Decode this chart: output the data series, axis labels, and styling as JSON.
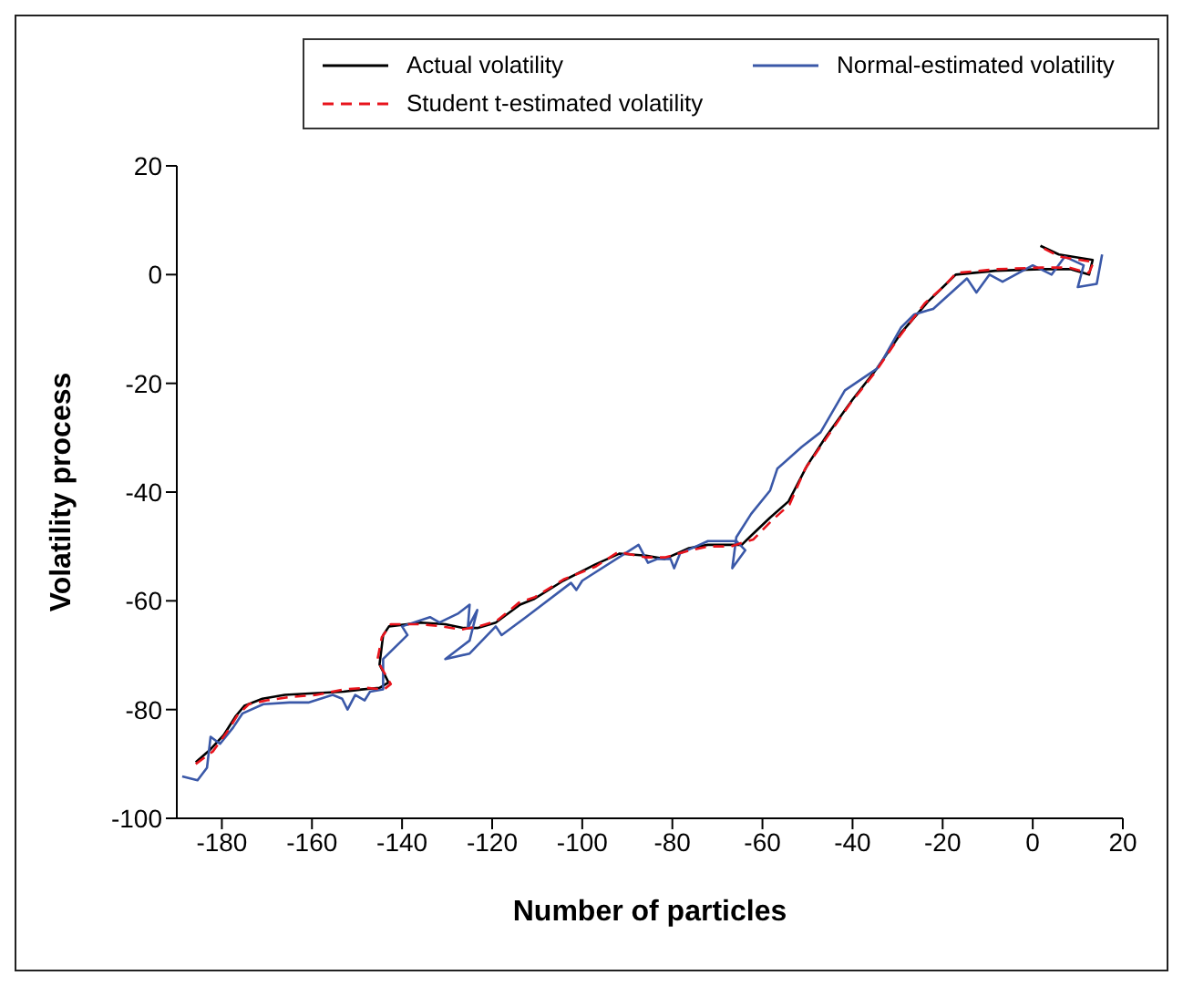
{
  "chart_data": {
    "type": "line",
    "xlabel": "Number of particles",
    "ylabel": "Volatility process",
    "xlim": [
      -190,
      20
    ],
    "xticks": [
      -180,
      -160,
      -140,
      -120,
      -100,
      -80,
      -60,
      -40,
      -20,
      0,
      20
    ],
    "ylim": [
      -100,
      20
    ],
    "yticks": [
      -100,
      -80,
      -60,
      -40,
      -20,
      0,
      20
    ],
    "grid": false,
    "legend": "top right",
    "marker": "none",
    "series": [
      {
        "name": "Actual volatility",
        "color": "#000000",
        "line_style": "solid",
        "x": [
          -185.8,
          -182.5,
          -179.6,
          -177,
          -175,
          -171,
          -166,
          -159.6,
          -153,
          -149,
          -145,
          -143,
          -145,
          -144.2,
          -142.9,
          -135.8,
          -130.4,
          -126.3,
          -123.3,
          -119.2,
          -113.8,
          -110.8,
          -104.2,
          -97.1,
          -91.7,
          -85.8,
          -81.7,
          -76.3,
          -72.1,
          -66.7,
          -64.6,
          -62.5,
          -58.3,
          -54.2,
          -50,
          -45.8,
          -40,
          -34.6,
          -29.2,
          -23.3,
          -19.2,
          -17.1,
          -8.3,
          1.7,
          8.3,
          12.5,
          13.3,
          5.8,
          1.7
        ],
        "values": [
          -89.7,
          -87.3,
          -84.7,
          -81.3,
          -79.3,
          -78,
          -77.3,
          -77,
          -76.7,
          -76.3,
          -76,
          -75,
          -71.7,
          -66.3,
          -64.7,
          -64,
          -64.3,
          -65,
          -65,
          -64,
          -60.7,
          -59.7,
          -56.3,
          -53.3,
          -51.3,
          -51.7,
          -52.3,
          -50.3,
          -49.7,
          -49.7,
          -49.7,
          -48,
          -44.7,
          -41.7,
          -35,
          -29.7,
          -23,
          -17.3,
          -10.7,
          -5,
          -1.7,
          0,
          0.7,
          1,
          1,
          0,
          2.7,
          3.7,
          5.3
        ]
      },
      {
        "name": "Normal-estimated volatility",
        "color": "#3a58a8",
        "line_style": "solid",
        "x": [
          -188.8,
          -185.4,
          -183.3,
          -182.5,
          -180.4,
          -177.5,
          -175.4,
          -170.8,
          -165,
          -160.8,
          -155.4,
          -153.3,
          -152.1,
          -150.4,
          -148.3,
          -147.1,
          -144.2,
          -144.2,
          -138.8,
          -140,
          -133.8,
          -131.7,
          -127.5,
          -125,
          -125.4,
          -123.3,
          -125,
          -130.4,
          -125,
          -119.2,
          -117.9,
          -112.5,
          -102.5,
          -101.3,
          -100,
          -87.5,
          -85.4,
          -83.3,
          -80.4,
          -79.6,
          -78.3,
          -72.1,
          -65.8,
          -63.8,
          -66.7,
          -65.8,
          -62.5,
          -58.3,
          -56.7,
          -51.3,
          -47.1,
          -41.7,
          -34.6,
          -33.3,
          -29.2,
          -26.3,
          -22.1,
          -14.6,
          -12.5,
          -9.6,
          -6.7,
          0,
          4.2,
          7.1,
          11.3,
          10,
          14.2,
          15.4
        ],
        "values": [
          -92.3,
          -93,
          -90.7,
          -85,
          -86.3,
          -83.3,
          -80.7,
          -79,
          -78.7,
          -78.7,
          -77.3,
          -78,
          -80,
          -77.3,
          -78.3,
          -76.7,
          -76.3,
          -70.7,
          -66.3,
          -64.7,
          -63,
          -64,
          -62.3,
          -60.7,
          -65,
          -61.7,
          -67.3,
          -70.7,
          -69.7,
          -64.7,
          -66.3,
          -63,
          -56.7,
          -58,
          -56.3,
          -49.7,
          -53,
          -52.3,
          -52.3,
          -54,
          -51.3,
          -49,
          -49,
          -50.7,
          -54,
          -48.3,
          -44,
          -39.7,
          -35.7,
          -31.7,
          -29,
          -21.3,
          -17.3,
          -15.7,
          -9.7,
          -7.3,
          -6.3,
          -0.7,
          -3.3,
          0,
          -1.3,
          1.7,
          0,
          3.3,
          1.7,
          -2.3,
          -1.7,
          3.7
        ]
      },
      {
        "name": "Student t-estimated volatility",
        "color": "#e8141c",
        "line_style": "dashed",
        "x": [
          -185.8,
          -182,
          -179,
          -176.5,
          -174,
          -170,
          -165,
          -159,
          -153,
          -148,
          -144,
          -142.5,
          -145.5,
          -144.5,
          -142.5,
          -136,
          -131,
          -127,
          -123,
          -119,
          -114,
          -110.5,
          -104,
          -97,
          -92,
          -86,
          -81.5,
          -76,
          -72,
          -67,
          -64.5,
          -62,
          -58,
          -54,
          -50.5,
          -46,
          -40.5,
          -35,
          -29.5,
          -24,
          -19.5,
          -17,
          -8,
          2,
          8,
          12.5,
          13.5,
          6,
          2
        ],
        "values": [
          -90,
          -87.7,
          -84.3,
          -81,
          -79,
          -78.3,
          -77.7,
          -77.3,
          -76.3,
          -76,
          -76.3,
          -75.3,
          -71,
          -66.7,
          -64.3,
          -64.3,
          -64.7,
          -65.3,
          -64.7,
          -63.7,
          -60.3,
          -59.3,
          -56,
          -53.7,
          -51,
          -52,
          -52,
          -50.7,
          -50,
          -50,
          -49.3,
          -48.7,
          -45.3,
          -42.3,
          -35.7,
          -30.3,
          -23.7,
          -18,
          -11.3,
          -5.3,
          -2,
          0.3,
          1,
          1.3,
          1.3,
          0.3,
          2.3,
          3.3,
          5
        ]
      }
    ]
  }
}
